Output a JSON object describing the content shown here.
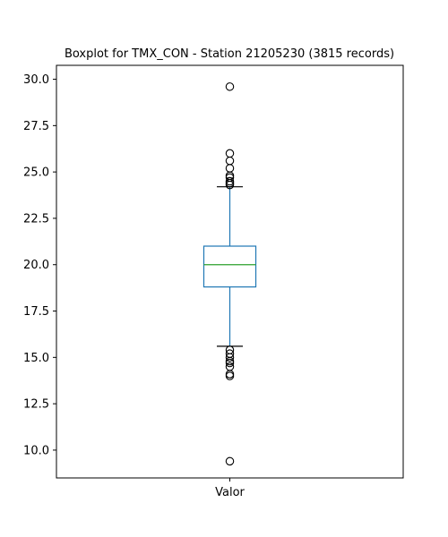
{
  "chart_data": {
    "type": "boxplot",
    "title": "Boxplot for TMX_CON - Station 21205230 (3815 records)",
    "xlabel": "",
    "ylabel": "",
    "categories": [
      "Valor"
    ],
    "ylim": [
      8.5,
      30.75
    ],
    "yticks": [
      10.0,
      12.5,
      15.0,
      17.5,
      20.0,
      22.5,
      25.0,
      27.5,
      30.0
    ],
    "ytick_labels": [
      "10.0",
      "12.5",
      "15.0",
      "17.5",
      "20.0",
      "22.5",
      "25.0",
      "27.5",
      "30.0"
    ],
    "grid": false,
    "boxes": [
      {
        "category": "Valor",
        "whisker_low": 15.6,
        "q1": 18.8,
        "median": 20.0,
        "q3": 21.0,
        "whisker_high": 24.2,
        "outliers": [
          29.6,
          26.0,
          25.6,
          25.2,
          24.8,
          24.7,
          24.5,
          24.4,
          24.3,
          15.4,
          15.2,
          15.0,
          14.8,
          14.7,
          14.5,
          14.1,
          14.0,
          9.4
        ]
      }
    ],
    "colors": {
      "box": "#1f77b4",
      "median": "#2ca02c",
      "whisker_cap": "#000000",
      "outlier_edge": "#000000"
    }
  }
}
